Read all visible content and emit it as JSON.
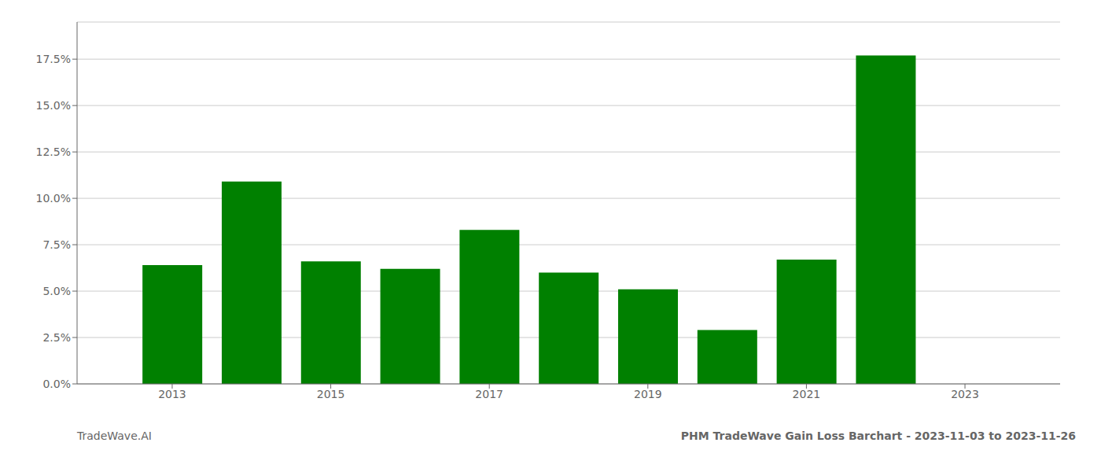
{
  "chart_data": {
    "type": "bar",
    "title": "PHM TradeWave Gain Loss Barchart - 2023-11-03 to 2023-11-26",
    "annotations": [
      "TradeWave.AI"
    ],
    "x": [
      2013,
      2014,
      2015,
      2016,
      2017,
      2018,
      2019,
      2020,
      2021,
      2022
    ],
    "values": [
      0.064,
      0.109,
      0.066,
      0.062,
      0.083,
      0.06,
      0.051,
      0.029,
      0.067,
      0.177
    ],
    "color": "#008000",
    "xlim": [
      2011.8,
      2024.2
    ],
    "xticks": [
      2013,
      2015,
      2017,
      2019,
      2021,
      2023
    ],
    "ylim": [
      0.0,
      0.195
    ],
    "yticks": [
      {
        "value": 0.0,
        "label": "0.0%"
      },
      {
        "value": 0.025,
        "label": "2.5%"
      },
      {
        "value": 0.05,
        "label": "5.0%"
      },
      {
        "value": 0.075,
        "label": "7.5%"
      },
      {
        "value": 0.1,
        "label": "10.0%"
      },
      {
        "value": 0.125,
        "label": "12.5%"
      },
      {
        "value": 0.15,
        "label": "15.0%"
      },
      {
        "value": 0.175,
        "label": "17.5%"
      }
    ],
    "grid": true
  }
}
